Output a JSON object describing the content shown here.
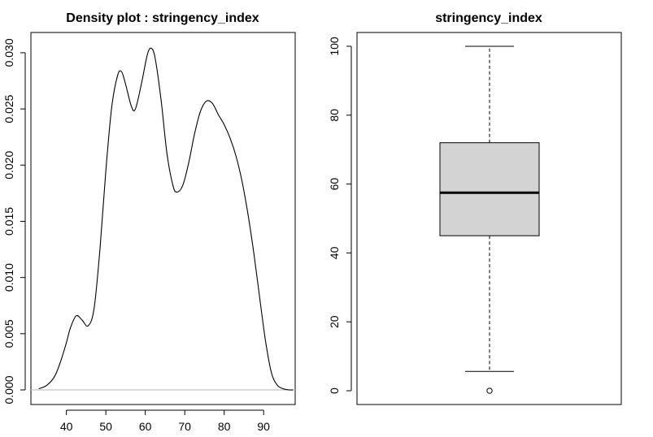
{
  "chart_data": [
    {
      "type": "line",
      "title": "Density plot : stringency_index",
      "xlabel": "",
      "ylabel": "",
      "xlim": [
        31,
        98
      ],
      "ylim": [
        -0.0013,
        0.0318
      ],
      "x_ticks": [
        40,
        50,
        60,
        70,
        80,
        90
      ],
      "x_tick_labels": [
        "40",
        "50",
        "60",
        "70",
        "80",
        "90"
      ],
      "y_ticks": [
        0.0,
        0.005,
        0.01,
        0.015,
        0.02,
        0.025,
        0.03
      ],
      "y_tick_labels": [
        "0.000",
        "0.005",
        "0.010",
        "0.015",
        "0.020",
        "0.025",
        "0.030"
      ],
      "baseline": 0,
      "grid": false,
      "series": [
        {
          "x": [
            33,
            35,
            37,
            38.5,
            40,
            41,
            42.5,
            44,
            45.5,
            47,
            48.5,
            50,
            51.5,
            53,
            54,
            55,
            56.5,
            57.5,
            59,
            60.5,
            61.5,
            62.5,
            64,
            65.5,
            67,
            68,
            69.5,
            71,
            72.5,
            74,
            75.5,
            77,
            78.5,
            80,
            81.5,
            83,
            84.5,
            86,
            87.5,
            89,
            90.5,
            92,
            93.5,
            95,
            96.5,
            97.5
          ],
          "y": [
            0.0001,
            0.0004,
            0.0012,
            0.0025,
            0.0042,
            0.0055,
            0.0066,
            0.0062,
            0.0057,
            0.0072,
            0.0125,
            0.0195,
            0.0252,
            0.028,
            0.0283,
            0.0272,
            0.0252,
            0.025,
            0.0272,
            0.0298,
            0.0304,
            0.0295,
            0.0258,
            0.021,
            0.0182,
            0.0176,
            0.0182,
            0.0202,
            0.0228,
            0.0248,
            0.0257,
            0.0255,
            0.0245,
            0.0236,
            0.0224,
            0.0208,
            0.0186,
            0.0157,
            0.0122,
            0.0082,
            0.0043,
            0.0015,
            0.0004,
            0.0001,
            0.0,
            0.0
          ]
        }
      ]
    },
    {
      "type": "box",
      "title": "stringency_index",
      "xlabel": "",
      "ylabel": "",
      "ylim": [
        -4,
        104
      ],
      "y_ticks": [
        0,
        20,
        40,
        60,
        80,
        100
      ],
      "y_tick_labels": [
        "0",
        "20",
        "40",
        "60",
        "80",
        "100"
      ],
      "grid": false,
      "box": {
        "min": 5.6,
        "q1": 45.0,
        "median": 57.5,
        "q3": 72.0,
        "max": 100.0,
        "outliers": [
          0
        ],
        "fill": "#d3d3d3"
      }
    }
  ]
}
